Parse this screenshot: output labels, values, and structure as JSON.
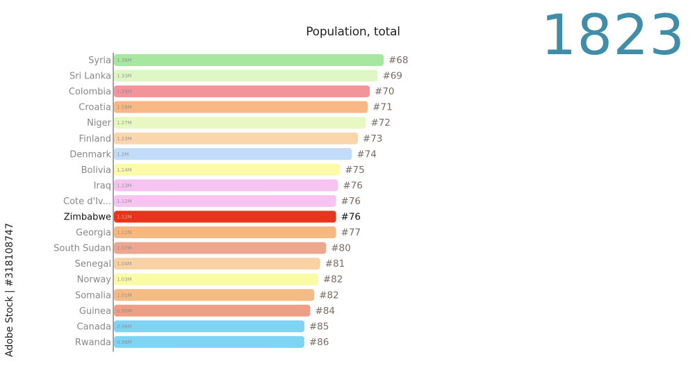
{
  "header": {
    "year": "1823",
    "watermark": "Adobe Stock | #318108747"
  },
  "chart_data": {
    "type": "bar",
    "orientation": "horizontal",
    "title": "Population, total",
    "categories": [
      "Syria",
      "Sri Lanka",
      "Colombia",
      "Croatia",
      "Niger",
      "Finland",
      "Denmark",
      "Bolivia",
      "Iraq",
      "Cote d'Iv...",
      "Zimbabwe",
      "Georgia",
      "South Sudan",
      "Senegal",
      "Norway",
      "Somalia",
      "Guinea",
      "Canada",
      "Rwanda"
    ],
    "values": [
      1.36,
      1.33,
      1.29,
      1.28,
      1.27,
      1.23,
      1.2,
      1.14,
      1.13,
      1.12,
      1.12,
      1.12,
      1.07,
      1.04,
      1.03,
      1.01,
      0.99,
      0.96,
      0.96
    ],
    "value_labels": [
      "1.36M",
      "1.33M",
      "1.29M",
      "1.28M",
      "1.27M",
      "1.23M",
      "1.2M",
      "1.14M",
      "1.13M",
      "1.12M",
      "1.12M",
      "1.12M",
      "1.07M",
      "1.04M",
      "1.03M",
      "1.01M",
      "0.99M",
      "0.96M",
      "0.96M"
    ],
    "ranks": [
      "#68",
      "#69",
      "#70",
      "#71",
      "#72",
      "#73",
      "#74",
      "#75",
      "#76",
      "#76",
      "#76",
      "#77",
      "#80",
      "#81",
      "#82",
      "#82",
      "#84",
      "#85",
      "#86"
    ],
    "highlight_index": 10,
    "colors": [
      "#a6e8a0",
      "#def7c4",
      "#f2959a",
      "#f8b886",
      "#e8f8c0",
      "#f9d6ac",
      "#c0dcf8",
      "#fbfbaa",
      "#f7c4f2",
      "#f7c4f2",
      "#e8341c",
      "#f6b880",
      "#eca78e",
      "#f9d2a4",
      "#fbfba6",
      "#f5bb84",
      "#ee9f86",
      "#7fd4f4",
      "#7fd4f4"
    ],
    "xlim": [
      0,
      1.36
    ],
    "grid": false,
    "legend": "none"
  }
}
